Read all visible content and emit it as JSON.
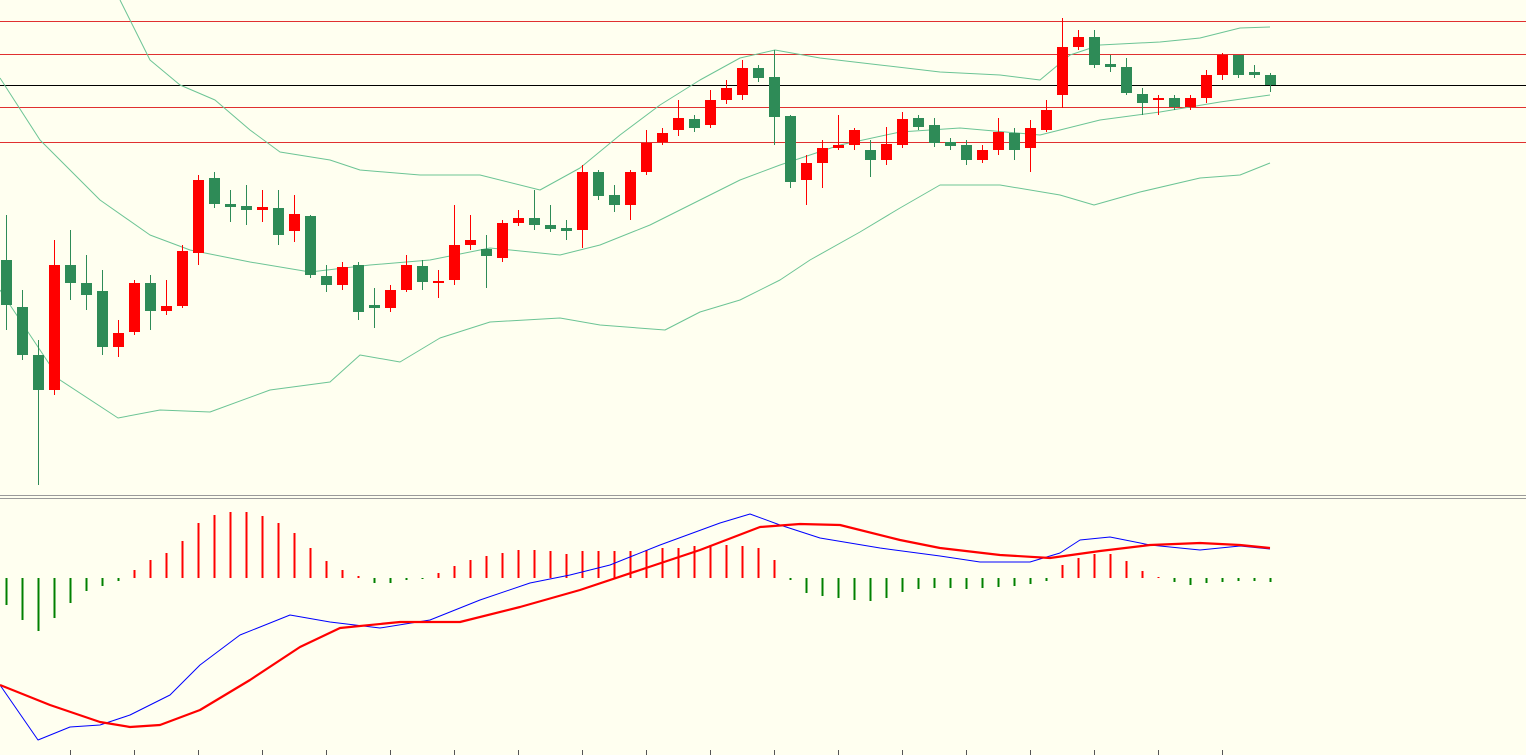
{
  "chart_data": [
    {
      "type": "candlestick",
      "xlim": [
        0,
        1526
      ],
      "ylim": [
        0,
        495
      ],
      "up_color": "#ff0000",
      "down_color": "#2e8b57",
      "hlines": [
        {
          "value": 474,
          "color": "#e03030"
        },
        {
          "value": 441,
          "color": "#e03030"
        },
        {
          "value": 410,
          "color": "#000000"
        },
        {
          "value": 388,
          "color": "#e03030"
        },
        {
          "value": 353,
          "color": "#e03030"
        }
      ],
      "x": [
        6,
        22,
        38,
        54,
        70,
        86,
        102,
        118,
        134,
        150,
        166,
        182,
        198,
        214,
        230,
        246,
        262,
        278,
        294,
        310,
        326,
        342,
        358,
        374,
        390,
        406,
        422,
        438,
        454,
        470,
        486,
        502,
        518,
        534,
        550,
        566,
        582,
        598,
        614,
        630,
        646,
        662,
        678,
        694,
        710,
        726,
        742,
        758,
        774,
        790,
        806,
        822,
        838,
        854,
        870,
        886,
        902,
        918,
        934,
        950,
        966,
        982,
        998,
        1014,
        1030,
        1046,
        1062,
        1078,
        1094,
        1110,
        1126,
        1142,
        1158,
        1174,
        1190,
        1206,
        1222,
        1238,
        1254,
        1270
      ],
      "open": [
        235,
        188,
        140,
        105,
        230,
        212,
        204,
        148,
        163,
        212,
        184,
        189,
        242,
        317,
        291,
        289,
        285,
        287,
        264,
        279,
        219,
        210,
        230,
        190,
        187,
        205,
        229,
        212,
        215,
        250,
        246,
        237,
        272,
        277,
        270,
        267,
        265,
        323,
        300,
        290,
        323,
        353,
        365,
        376,
        370,
        395,
        400,
        427,
        418,
        379,
        315,
        332,
        347,
        350,
        345,
        335,
        350,
        377,
        370,
        353,
        350,
        335,
        345,
        362,
        347,
        365,
        400,
        448,
        458,
        431,
        428,
        401,
        395,
        397,
        388,
        397,
        420,
        440,
        423,
        420
      ],
      "high": [
        280,
        205,
        155,
        255,
        265,
        240,
        225,
        175,
        215,
        220,
        215,
        250,
        320,
        323,
        305,
        310,
        305,
        305,
        300,
        280,
        230,
        233,
        233,
        207,
        210,
        240,
        235,
        225,
        290,
        280,
        260,
        275,
        285,
        305,
        290,
        275,
        330,
        325,
        310,
        325,
        365,
        367,
        395,
        380,
        405,
        415,
        435,
        430,
        445,
        380,
        340,
        355,
        380,
        367,
        355,
        368,
        383,
        380,
        377,
        357,
        355,
        350,
        377,
        367,
        375,
        395,
        477,
        465,
        465,
        440,
        437,
        407,
        400,
        400,
        400,
        425,
        442,
        440,
        430,
        422
      ],
      "low": [
        165,
        135,
        10,
        100,
        195,
        185,
        140,
        138,
        160,
        165,
        180,
        187,
        230,
        287,
        273,
        270,
        273,
        250,
        253,
        217,
        203,
        205,
        175,
        167,
        183,
        203,
        205,
        197,
        210,
        245,
        207,
        233,
        269,
        265,
        263,
        255,
        247,
        295,
        283,
        275,
        320,
        350,
        359,
        363,
        367,
        391,
        395,
        413,
        350,
        307,
        290,
        307,
        345,
        345,
        318,
        330,
        347,
        365,
        348,
        345,
        330,
        332,
        340,
        335,
        323,
        363,
        387,
        445,
        427,
        423,
        400,
        380,
        380,
        385,
        385,
        392,
        415,
        417,
        417,
        403
      ],
      "close": [
        190,
        140,
        105,
        230,
        212,
        200,
        148,
        162,
        212,
        184,
        189,
        244,
        315,
        291,
        288,
        285,
        288,
        260,
        281,
        220,
        210,
        228,
        183,
        187,
        205,
        230,
        213,
        214,
        250,
        255,
        239,
        272,
        277,
        270,
        266,
        264,
        323,
        299,
        290,
        323,
        352,
        362,
        377,
        367,
        395,
        407,
        427,
        417,
        378,
        313,
        332,
        347,
        350,
        365,
        335,
        351,
        376,
        368,
        352,
        349,
        335,
        345,
        363,
        345,
        367,
        385,
        448,
        458,
        430,
        428,
        402,
        392,
        397,
        388,
        397,
        420,
        440,
        420,
        420,
        410
      ],
      "lines": [
        {
          "color": "#6cc495",
          "x": [
            120,
            150,
            180,
            215,
            250,
            280,
            330,
            360,
            420,
            480,
            540,
            580,
            620,
            660,
            700,
            740,
            775,
            820,
            880,
            940,
            1000,
            1040,
            1070,
            1100,
            1160,
            1200,
            1240,
            1270
          ],
          "values": [
            495,
            435,
            410,
            395,
            365,
            343,
            335,
            325,
            320,
            320,
            305,
            327,
            360,
            390,
            415,
            437,
            445,
            437,
            430,
            423,
            420,
            415,
            440,
            450,
            453,
            457,
            467,
            468
          ]
        },
        {
          "color": "#6cc495",
          "x": [
            0,
            40,
            100,
            150,
            190,
            250,
            310,
            370,
            430,
            490,
            560,
            600,
            650,
            700,
            740,
            780,
            840,
            900,
            960,
            1040,
            1060,
            1100,
            1160,
            1220,
            1270
          ],
          "values": [
            417,
            355,
            295,
            260,
            245,
            233,
            223,
            230,
            235,
            247,
            240,
            250,
            270,
            295,
            315,
            330,
            350,
            363,
            367,
            360,
            365,
            375,
            383,
            393,
            400
          ]
        },
        {
          "color": "#6cc495",
          "x": [
            0,
            60,
            118,
            160,
            210,
            270,
            330,
            360,
            400,
            440,
            490,
            560,
            600,
            665,
            700,
            740,
            780,
            810,
            860,
            900,
            940,
            1000,
            1060,
            1094,
            1140,
            1200,
            1240,
            1270
          ],
          "values": [
            205,
            115,
            77,
            85,
            83,
            105,
            113,
            140,
            133,
            157,
            173,
            177,
            170,
            165,
            183,
            195,
            215,
            235,
            263,
            287,
            310,
            310,
            300,
            290,
            303,
            317,
            320,
            332
          ]
        }
      ]
    },
    {
      "type": "macd",
      "xlim": [
        0,
        1526
      ],
      "ylim": [
        -177,
        78
      ],
      "pos_color": "#ff0000",
      "neg_color": "#008000",
      "x": [
        6,
        22,
        38,
        54,
        70,
        86,
        102,
        118,
        134,
        150,
        166,
        182,
        198,
        214,
        230,
        246,
        262,
        278,
        294,
        310,
        326,
        342,
        358,
        374,
        390,
        406,
        422,
        438,
        454,
        470,
        486,
        502,
        518,
        534,
        550,
        566,
        582,
        598,
        614,
        630,
        646,
        662,
        678,
        694,
        710,
        726,
        742,
        758,
        774,
        790,
        806,
        822,
        838,
        854,
        870,
        886,
        902,
        918,
        934,
        950,
        966,
        982,
        998,
        1014,
        1030,
        1046,
        1062,
        1078,
        1094,
        1110,
        1126,
        1142,
        1158,
        1174,
        1190,
        1206,
        1222,
        1238,
        1254,
        1270
      ],
      "values": [
        -27,
        -42,
        -53,
        -40,
        -25,
        -13,
        -8,
        -3,
        8,
        18,
        25,
        37,
        55,
        63,
        66,
        66,
        62,
        55,
        45,
        30,
        17,
        8,
        2,
        -5,
        -5,
        -2,
        -1,
        5,
        12,
        18,
        22,
        25,
        28,
        28,
        27,
        24,
        27,
        27,
        27,
        27,
        28,
        30,
        30,
        32,
        33,
        33,
        32,
        30,
        18,
        -2,
        -15,
        -18,
        -20,
        -22,
        -23,
        -20,
        -14,
        -11,
        -10,
        -10,
        -11,
        -10,
        -9,
        -8,
        -6,
        -3,
        13,
        20,
        24,
        24,
        17,
        7,
        1,
        -4,
        -7,
        -5,
        -4,
        -3,
        -3,
        -4
      ],
      "xticks": [
        70,
        134,
        198,
        262,
        326,
        390,
        454,
        518,
        582,
        646,
        710,
        774,
        838,
        902,
        966,
        1030,
        1094,
        1158,
        1222
      ],
      "series": [
        {
          "color": "#0000ff",
          "width": 1,
          "x": [
            0,
            38,
            70,
            100,
            130,
            170,
            200,
            240,
            290,
            330,
            380,
            430,
            480,
            530,
            570,
            610,
            660,
            720,
            750,
            780,
            820,
            880,
            940,
            980,
            1030,
            1060,
            1080,
            1110,
            1150,
            1200,
            1240,
            1270
          ],
          "values": [
            -107,
            -162,
            -149,
            -147,
            -137,
            -117,
            -87,
            -57,
            -37,
            -44,
            -50,
            -42,
            -22,
            -5,
            3,
            13,
            33,
            55,
            64,
            53,
            40,
            30,
            22,
            16,
            16,
            25,
            38,
            41,
            33,
            28,
            32,
            29
          ]
        },
        {
          "color": "#ff0000",
          "width": 2.2,
          "x": [
            0,
            50,
            100,
            130,
            160,
            200,
            250,
            300,
            340,
            400,
            460,
            520,
            580,
            640,
            700,
            760,
            800,
            840,
            900,
            940,
            1000,
            1050,
            1100,
            1150,
            1200,
            1240,
            1270
          ],
          "values": [
            -107,
            -127,
            -144,
            -149,
            -147,
            -132,
            -102,
            -69,
            -50,
            -44,
            -44,
            -29,
            -12,
            8,
            28,
            51,
            54,
            53,
            38,
            30,
            23,
            20,
            27,
            33,
            35,
            33,
            30
          ]
        }
      ]
    }
  ]
}
